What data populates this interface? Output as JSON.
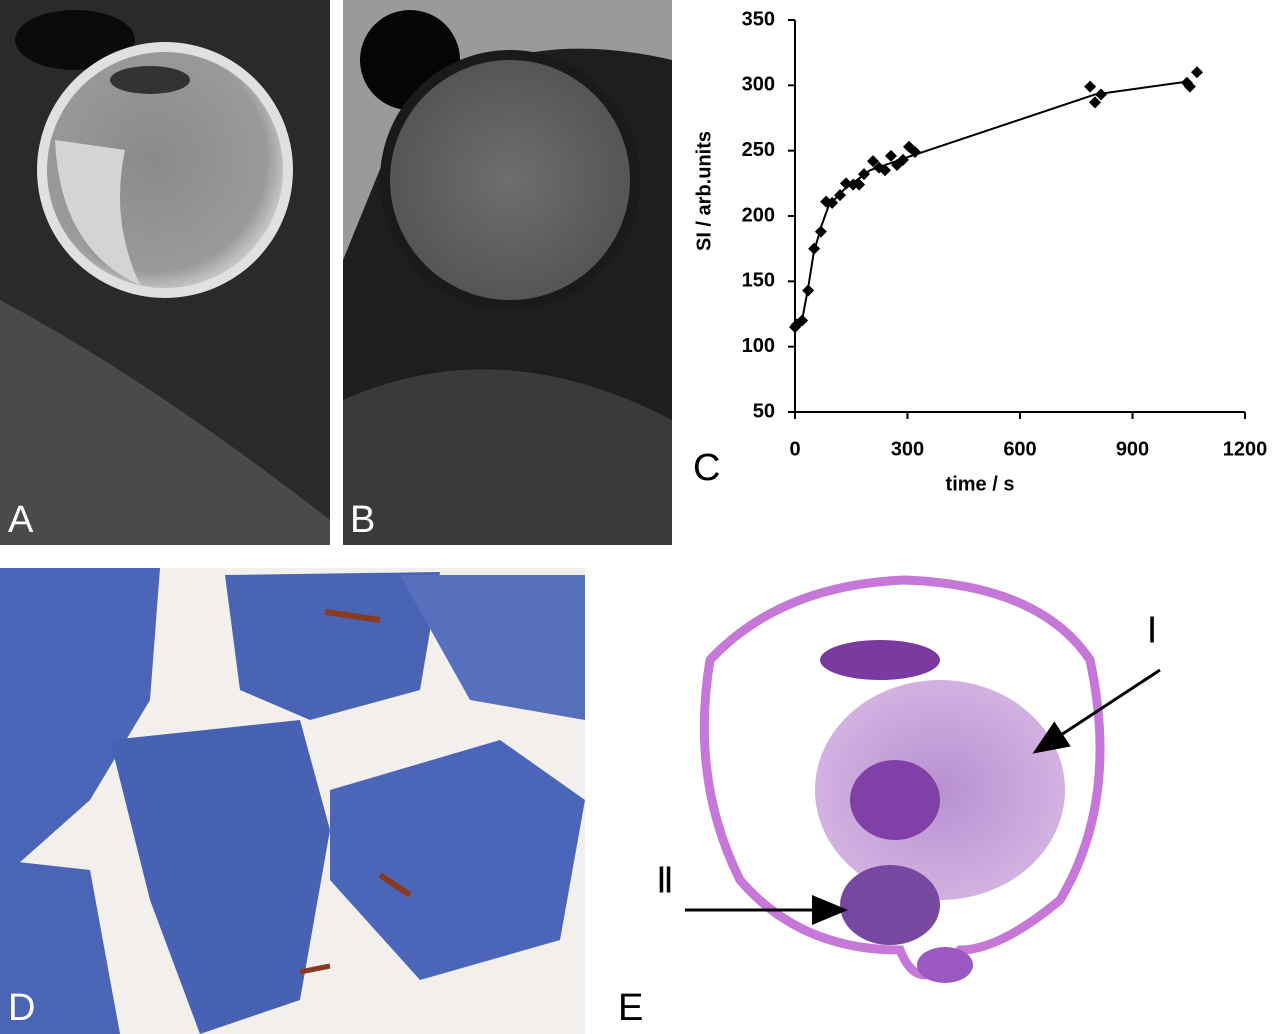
{
  "panel_labels": [
    "A",
    "B",
    "C",
    "D",
    "E"
  ],
  "annotations": [
    "Ⅰ",
    "Ⅱ"
  ],
  "chart_data": {
    "type": "scatter",
    "x_label": "time / s",
    "y_label": "SI / arb.units",
    "xlim": [
      0,
      1200
    ],
    "xticks": [
      0,
      300,
      600,
      900,
      1200
    ],
    "ylim": [
      50,
      350
    ],
    "yticks": [
      50,
      100,
      150,
      200,
      250,
      300,
      350
    ],
    "grid": false,
    "series": [
      {
        "style": "markers",
        "color": "#000000",
        "x": [
          0,
          5,
          19,
          35,
          51,
          69,
          83,
          99,
          120,
          136,
          155,
          171,
          184,
          208,
          224,
          240,
          256,
          272,
          288,
          304,
          320,
          787,
          800,
          816,
          1045,
          1053,
          1072
        ],
        "values": [
          115,
          117,
          120,
          143,
          175,
          188,
          211,
          210,
          216,
          225,
          224,
          224,
          232,
          242,
          237,
          235,
          246,
          239,
          243,
          253,
          249,
          299,
          287,
          293,
          302,
          299,
          310
        ]
      },
      {
        "style": "line",
        "color": "#000000",
        "x": [
          0,
          20,
          35,
          50,
          70,
          90,
          130,
          200,
          300,
          800,
          1050
        ],
        "values": [
          115,
          122,
          145,
          172,
          192,
          208,
          220,
          235,
          245,
          293,
          303
        ]
      }
    ]
  }
}
